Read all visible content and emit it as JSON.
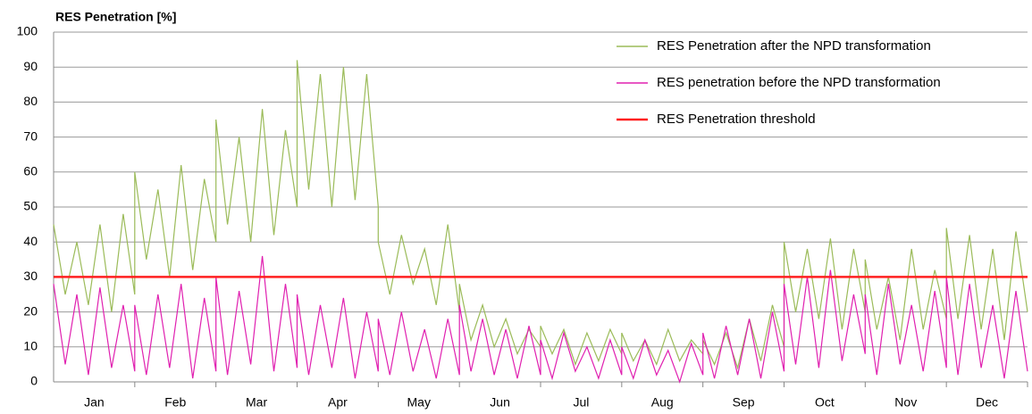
{
  "chart_data": {
    "type": "line",
    "title": "RES Penetration [%]",
    "categories": [
      "Jan",
      "Feb",
      "Mar",
      "Apr",
      "May",
      "Jun",
      "Jul",
      "Aug",
      "Sep",
      "Oct",
      "Nov",
      "Dec"
    ],
    "ylim": [
      0,
      100
    ],
    "yticks": [
      0,
      10,
      20,
      30,
      40,
      50,
      60,
      70,
      80,
      90,
      100
    ],
    "grid": true,
    "series": [
      {
        "name": "RES Penetration after the NPD transformation",
        "color": "#9bbb59",
        "values": [
          [
            45,
            25,
            40,
            22,
            45,
            20,
            48,
            25
          ],
          [
            60,
            35,
            55,
            30,
            62,
            32,
            58,
            40
          ],
          [
            75,
            45,
            70,
            40,
            78,
            42,
            72,
            50
          ],
          [
            92,
            55,
            88,
            50,
            90,
            52,
            88,
            50
          ],
          [
            40,
            25,
            42,
            28,
            38,
            22,
            45,
            20
          ],
          [
            28,
            12,
            22,
            10,
            18,
            8,
            15,
            10
          ],
          [
            16,
            8,
            15,
            5,
            14,
            6,
            15,
            8
          ],
          [
            14,
            6,
            12,
            5,
            15,
            6,
            12,
            8
          ],
          [
            12,
            5,
            14,
            4,
            18,
            6,
            22,
            10
          ],
          [
            40,
            20,
            38,
            18,
            41,
            15,
            38,
            20
          ],
          [
            35,
            15,
            30,
            12,
            38,
            15,
            32,
            18
          ],
          [
            44,
            18,
            42,
            15,
            38,
            12,
            43,
            20
          ]
        ]
      },
      {
        "name": "RES penetration before the NPD transformation",
        "color": "#e020b0",
        "values": [
          [
            28,
            5,
            25,
            2,
            27,
            4,
            22,
            3
          ],
          [
            22,
            2,
            25,
            4,
            28,
            1,
            24,
            3
          ],
          [
            30,
            2,
            26,
            5,
            36,
            3,
            28,
            4
          ],
          [
            25,
            2,
            22,
            4,
            24,
            1,
            20,
            3
          ],
          [
            18,
            2,
            20,
            3,
            15,
            1,
            18,
            2
          ],
          [
            22,
            3,
            18,
            2,
            15,
            1,
            16,
            2
          ],
          [
            12,
            1,
            14,
            3,
            10,
            1,
            12,
            2
          ],
          [
            10,
            1,
            12,
            2,
            9,
            0,
            11,
            2
          ],
          [
            14,
            1,
            16,
            2,
            18,
            1,
            20,
            3
          ],
          [
            28,
            5,
            30,
            4,
            32,
            6,
            25,
            8
          ],
          [
            25,
            2,
            28,
            5,
            22,
            3,
            26,
            4
          ],
          [
            30,
            2,
            28,
            4,
            22,
            1,
            26,
            3
          ]
        ]
      },
      {
        "name": "RES Penetration threshold",
        "color": "#ff2020",
        "values": [
          [
            30,
            30
          ],
          [
            30,
            30
          ],
          [
            30,
            30
          ],
          [
            30,
            30
          ],
          [
            30,
            30
          ],
          [
            30,
            30
          ],
          [
            30,
            30
          ],
          [
            30,
            30
          ],
          [
            30,
            30
          ],
          [
            30,
            30
          ],
          [
            30,
            30
          ],
          [
            30,
            30
          ]
        ]
      }
    ]
  }
}
